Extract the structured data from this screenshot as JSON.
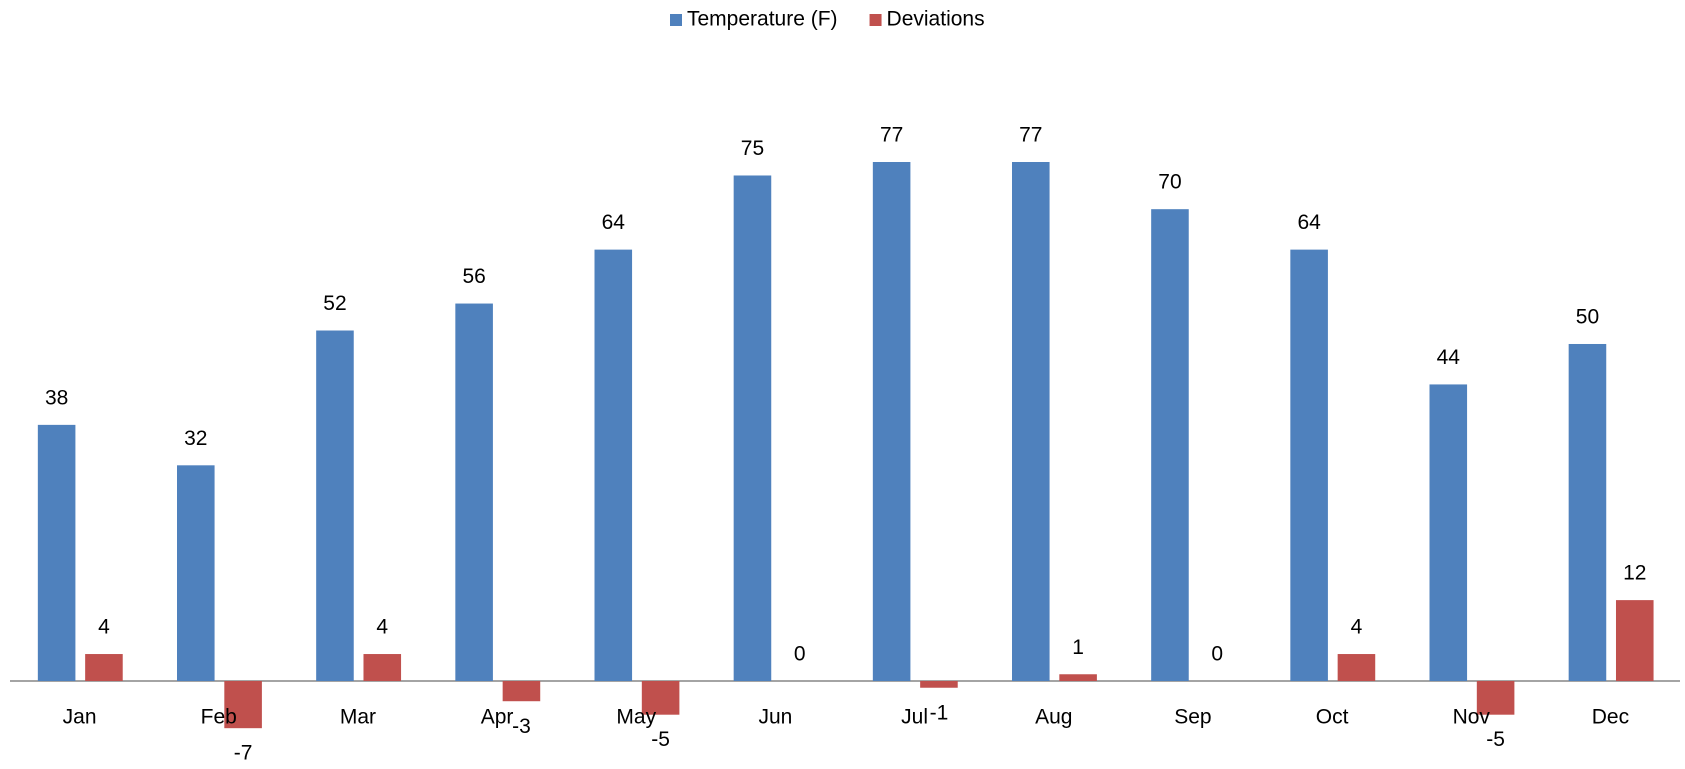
{
  "chart_data": {
    "type": "bar",
    "categories": [
      "Jan",
      "Feb",
      "Mar",
      "Apr",
      "May",
      "Jun",
      "Jul",
      "Aug",
      "Sep",
      "Oct",
      "Nov",
      "Dec"
    ],
    "series": [
      {
        "name": "Temperature (F)",
        "color": "#4f81bd",
        "values": [
          38,
          32,
          52,
          56,
          64,
          75,
          77,
          77,
          70,
          64,
          44,
          50
        ]
      },
      {
        "name": "Deviations",
        "color": "#c0504d",
        "values": [
          4,
          -7,
          4,
          -3,
          -5,
          0,
          -1,
          1,
          0,
          4,
          -5,
          12
        ]
      }
    ],
    "legend": "top",
    "grid": false
  }
}
